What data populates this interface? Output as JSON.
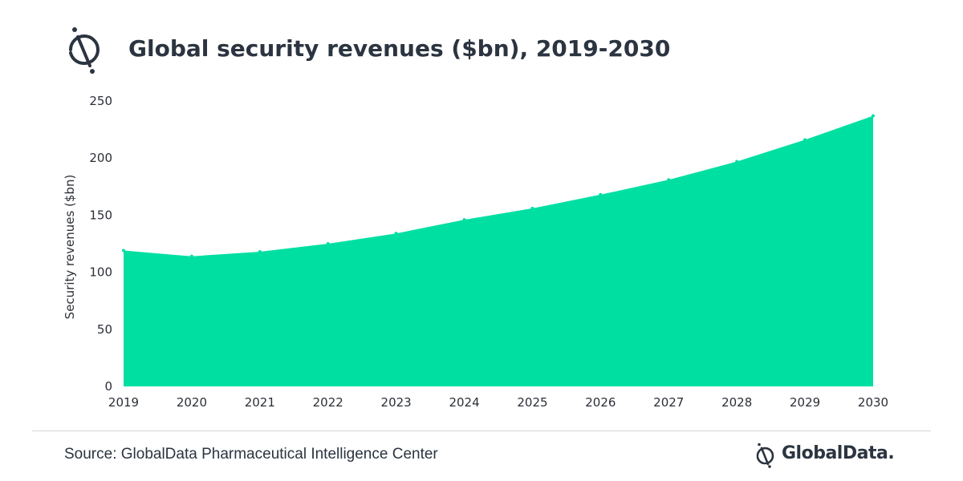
{
  "header": {
    "title": "Global security revenues ($bn), 2019-2030",
    "logo_icon": "globaldata-logo-icon"
  },
  "chart_data": {
    "type": "area",
    "title": "Global security revenues ($bn), 2019-2030",
    "xlabel": "",
    "ylabel": "Security revenues ($bn)",
    "x": [
      "2019",
      "2020",
      "2021",
      "2022",
      "2023",
      "2024",
      "2025",
      "2026",
      "2027",
      "2028",
      "2029",
      "2030"
    ],
    "series": [
      {
        "values": [
          119,
          114,
          118,
          125,
          134,
          146,
          156,
          168,
          181,
          197,
          216,
          237
        ]
      }
    ],
    "ylim": [
      0,
      250
    ],
    "yticks": [
      0,
      50,
      100,
      150,
      200,
      250
    ],
    "grid": false,
    "legend": "none",
    "fill_color": "#00dfa2"
  },
  "footer": {
    "source": "Source: GlobalData Pharmaceutical Intelligence Center",
    "brand": "GlobalData.",
    "brand_icon": "globaldata-logo-icon"
  },
  "colors": {
    "area": "#00dfa2",
    "text": "#2b3440",
    "divider": "#d0d4d9"
  }
}
